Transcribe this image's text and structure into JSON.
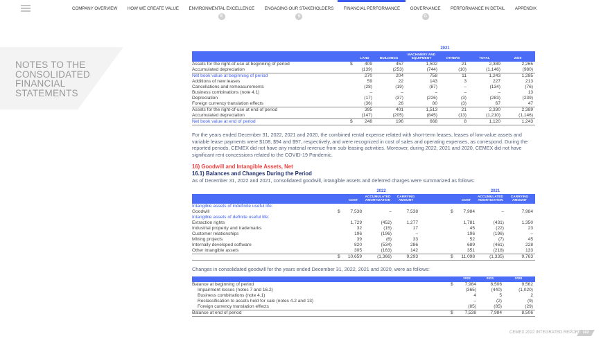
{
  "nav": {
    "items": [
      "COMPANY OVERVIEW",
      "HOW WE CREATE VALUE",
      "ENVIRONMENTAL EXCELLENCE",
      "ENGAGING OUR STAKEHOLDERS",
      "FINANCIAL PERFORMANCE",
      "GOVERNANCE",
      "PERFORMANCE IN DETAIL",
      "APPENDIX"
    ],
    "active": "FINANCIAL PERFORMANCE",
    "badges": [
      "E",
      "S",
      "G"
    ]
  },
  "section_title": "NOTES TO THE CONSOLIDATED FINANCIAL STATEMENTS",
  "accent_color": "#4a6cf7",
  "table1": {
    "year": "2021",
    "headers": [
      "LAND",
      "BUILDINGS",
      "MACHINERY AND EQUIPMENT",
      "OTHERS",
      "TOTAL",
      "2020"
    ],
    "rows": [
      {
        "label": "Assets for the right-of-use at beginning of period",
        "dollar": "$",
        "values": [
          "409",
          "457",
          "1,502",
          "21",
          "2,389",
          "2,265"
        ]
      },
      {
        "label": "Accumulated depreciation",
        "values": [
          "(139)",
          "(253)",
          "(744)",
          "(10)",
          "(1,146)",
          "(980)"
        ]
      },
      {
        "label": "Net book value at beginning of period",
        "blue": true,
        "top": true,
        "values": [
          "270",
          "204",
          "758",
          "11",
          "1,243",
          "1,285"
        ]
      },
      {
        "label": "Additions of new leases",
        "values": [
          "59",
          "22",
          "143",
          "3",
          "227",
          "213"
        ]
      },
      {
        "label": "Cancellations and remeasurements",
        "values": [
          "(28)",
          "(19)",
          "(87)",
          "–",
          "(134)",
          "(76)"
        ]
      },
      {
        "label": "Business combinations (note 4.1)",
        "values": [
          "–",
          "–",
          "–",
          "–",
          "–",
          "13"
        ]
      },
      {
        "label": "Depreciation",
        "values": [
          "(17)",
          "(37)",
          "(226)",
          "(3)",
          "(283)",
          "(239)"
        ]
      },
      {
        "label": "Foreign currency translation effects",
        "values": [
          "(36)",
          "26",
          "80",
          "(3)",
          "67",
          "47"
        ]
      },
      {
        "label": "Assets for the right-of-use at end of period",
        "top": true,
        "values": [
          "395",
          "401",
          "1,513",
          "21",
          "2,330",
          "2,389"
        ]
      },
      {
        "label": "Accumulated depreciation",
        "values": [
          "(147)",
          "(205)",
          "(845)",
          "(13)",
          "(1,210)",
          "(1,146)"
        ]
      },
      {
        "label": "Net book value at end of period",
        "blue": true,
        "top": true,
        "bot": true,
        "dollar": "$",
        "values": [
          "248",
          "196",
          "668",
          "8",
          "1,120",
          "1,243"
        ]
      }
    ]
  },
  "paragraph1": "For the years ended December 31, 2022, 2021 and 2020, the combined rental expense related with short-term leases, leases of low-value assets and variable lease payments were $108, $94 and $97, respectively, and were recognized in cost of sales and operating expenses, as correspond. During the reported periods, CEMEX did not have any material revenue from sub-leasing activities. Moreover, during 2022, 2021 and 2020, CEMEX did not have significant rent concessions related to the COVID-19 Pandemic.",
  "heading16": "16) Goodwill and Intangible Assets, Net",
  "heading161": "16.1) Balances and Changes During the Period",
  "paragraph2": "As of December 31, 2022 and 2021, consolidated goodwill, intangible assets and deferred charges were summarized as follows:",
  "table2": {
    "years": [
      "2022",
      "2021"
    ],
    "headers": [
      "COST",
      "ACCUMULATED AMORTIZATION",
      "CARRYING AMOUNT"
    ],
    "rows": [
      {
        "label": "Intangible assets of indefinite useful life:",
        "blue": true,
        "values": []
      },
      {
        "label": "Goodwill",
        "dollar": "$",
        "values": [
          "7,538",
          "–",
          "7,538",
          "7,984",
          "–",
          "7,984"
        ]
      },
      {
        "label": "Intangible assets of definite useful life:",
        "blue": true,
        "values": []
      },
      {
        "label": "Extraction rights",
        "values": [
          "1,729",
          "(452)",
          "1,277",
          "1,781",
          "(431)",
          "1,350"
        ]
      },
      {
        "label": "Industrial property and trademarks",
        "values": [
          "32",
          "(15)",
          "17",
          "45",
          "(22)",
          "23"
        ]
      },
      {
        "label": "Customer relationships",
        "values": [
          "196",
          "(196)",
          "–",
          "196",
          "(196)",
          "–"
        ]
      },
      {
        "label": "Mining projects",
        "values": [
          "39",
          "(6)",
          "33",
          "52",
          "(7)",
          "45"
        ]
      },
      {
        "label": "Internally developed software",
        "values": [
          "820",
          "(534)",
          "286",
          "689",
          "(461)",
          "228"
        ]
      },
      {
        "label": "Other intangible assets",
        "values": [
          "305",
          "(163)",
          "142",
          "351",
          "(218)",
          "133"
        ]
      },
      {
        "label": "",
        "dollar": "$",
        "top": true,
        "bot": true,
        "values": [
          "10,659",
          "(1,366)",
          "9,293",
          "11,098",
          "(1,335)",
          "9,763"
        ]
      }
    ]
  },
  "paragraph3": "Changes in consolidated goodwill for the years ended December 31, 2022, 2021 and 2020, were as follows:",
  "table3": {
    "headers": [
      "2022",
      "2021",
      "2020"
    ],
    "rows": [
      {
        "label": "Balance at beginning of period",
        "dollar": "$",
        "values": [
          "7,984",
          "8,506",
          "9,562"
        ]
      },
      {
        "label": "Impairment losses (notes 7 and 16.2)",
        "indent": true,
        "values": [
          "(365)",
          "(440)",
          "(1,020)"
        ]
      },
      {
        "label": "Business combinations (note 4.1)",
        "indent": true,
        "values": [
          "4",
          "5",
          "2"
        ]
      },
      {
        "label": "Reclassification to assets held for sale (notes 4.2 and 13)",
        "indent": true,
        "values": [
          "–",
          "(2)",
          "(9)"
        ]
      },
      {
        "label": "Foreign currency translation effects",
        "indent": true,
        "values": [
          "(85)",
          "(85)",
          "(29)"
        ]
      },
      {
        "label": "Balance at end of period",
        "dollar": "$",
        "top": true,
        "bot": true,
        "values": [
          "7,538",
          "7,984",
          "8,506"
        ]
      }
    ]
  },
  "footer": {
    "text": "CEMEX 2022 INTEGRATED REPORT",
    "page": "162"
  }
}
